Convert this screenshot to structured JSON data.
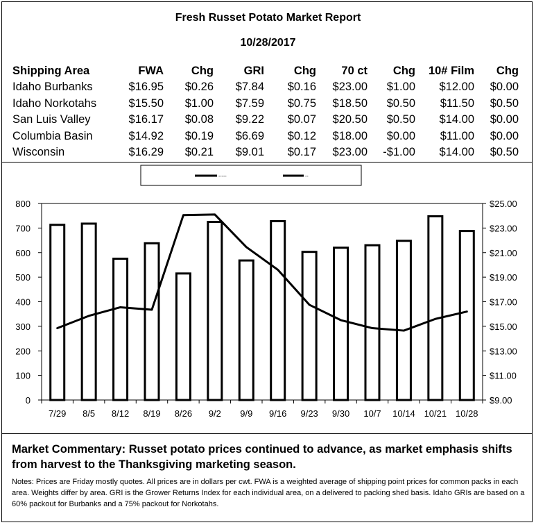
{
  "report": {
    "title": "Fresh Russet Potato Market Report",
    "date": "10/28/2017"
  },
  "table": {
    "headers": [
      "Shipping Area",
      "FWA",
      "Chg",
      "GRI",
      "Chg",
      "70 ct",
      "Chg",
      "10# Film",
      "Chg"
    ],
    "rows": [
      [
        "Idaho Burbanks",
        "$16.95",
        "$0.26",
        "$7.84",
        "$0.16",
        "$23.00",
        "$1.00",
        "$12.00",
        "$0.00"
      ],
      [
        "Idaho Norkotahs",
        "$15.50",
        "$1.00",
        "$7.59",
        "$0.75",
        "$18.50",
        "$0.50",
        "$11.50",
        "$0.50"
      ],
      [
        "San Luis Valley",
        "$16.17",
        "$0.08",
        "$9.22",
        "$0.07",
        "$20.50",
        "$0.50",
        "$14.00",
        "$0.00"
      ],
      [
        "Columbia Basin",
        "$14.92",
        "$0.19",
        "$6.69",
        "$0.12",
        "$18.00",
        "$0.00",
        "$11.00",
        "$0.00"
      ],
      [
        "Wisconsin",
        "$16.29",
        "$0.21",
        "$9.01",
        "$0.17",
        "$23.00",
        "-$1.00",
        "$14.00",
        "$0.50"
      ]
    ]
  },
  "chart_data": {
    "type": "bar",
    "categories": [
      "7/29",
      "8/5",
      "8/12",
      "8/19",
      "8/26",
      "9/2",
      "9/9",
      "9/16",
      "9/23",
      "9/30",
      "10/7",
      "10/14",
      "10/21",
      "10/28"
    ],
    "series": [
      {
        "type": "bar",
        "axis": "left",
        "values": [
          713,
          718,
          575,
          638,
          515,
          725,
          568,
          728,
          603,
          620,
          630,
          648,
          748,
          688
        ]
      },
      {
        "type": "line",
        "axis": "right",
        "values": [
          14.85,
          15.85,
          16.55,
          16.35,
          24.05,
          24.1,
          21.45,
          19.6,
          16.75,
          15.5,
          14.85,
          14.65,
          15.6,
          16.2
        ]
      }
    ],
    "legend": {
      "labels": [
        "-----",
        "--"
      ],
      "position": "top"
    },
    "y_left": {
      "ylim": [
        0,
        800
      ],
      "ticks": [
        "0",
        "100",
        "200",
        "300",
        "400",
        "500",
        "600",
        "700",
        "800"
      ]
    },
    "y_right": {
      "ylim": [
        9,
        25
      ],
      "ticks": [
        "$9.00",
        "$11.00",
        "$13.00",
        "$15.00",
        "$17.00",
        "$19.00",
        "$21.00",
        "$23.00",
        "$25.00"
      ]
    },
    "grid": false
  },
  "commentary": "Market Commentary: Russet potato prices continued to advance, as market emphasis shifts from harvest to the Thanksgiving marketing season.",
  "notes": "Notes: Prices are Friday mostly quotes. All prices are in dollars per cwt. FWA is a weighted average of shipping point prices for  common packs in each area. Weights differ by area. GRI is the Grower Returns Index for each individual area, on a delivered to packing shed basis. Idaho GRIs are based on a 60% packout for Burbanks and a 75% packout for Norkotahs."
}
